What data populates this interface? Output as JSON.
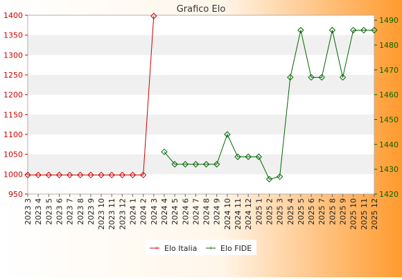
{
  "chart_data": {
    "type": "line",
    "title": "Grafico Elo",
    "categories": [
      "2023 3",
      "2023 4",
      "2023 5",
      "2023 6",
      "2023 7",
      "2023 8",
      "2023 9",
      "2023 10",
      "2023 11",
      "2023 12",
      "2024 1",
      "2024 2",
      "2024 3",
      "2024 4",
      "2024 5",
      "2024 6",
      "2024 7",
      "2024 8",
      "2024 9",
      "2024 10",
      "2024 11",
      "2024 12",
      "2025 1",
      "2025 2",
      "2025 3",
      "2025 4",
      "2025 5",
      "2025 6",
      "2025 7",
      "2025 8",
      "2025 9",
      "2025 10",
      "2025 11",
      "2025 12"
    ],
    "y_left": {
      "range": [
        950,
        1400
      ],
      "ticks": [
        950,
        1000,
        1050,
        1100,
        1150,
        1200,
        1250,
        1300,
        1350,
        1400
      ],
      "color": "#cc0000"
    },
    "y_right": {
      "range": [
        1420,
        1492
      ],
      "ticks": [
        1420,
        1430,
        1440,
        1450,
        1460,
        1470,
        1480,
        1490
      ],
      "color": "#006600"
    },
    "grid": "horizontal bands",
    "legend_position": "bottom-center",
    "series": [
      {
        "name": "Elo Italia",
        "axis": "left",
        "color": "#cc0000",
        "values": [
          998,
          998,
          998,
          998,
          998,
          998,
          998,
          998,
          998,
          998,
          998,
          998,
          1398,
          null,
          null,
          null,
          null,
          null,
          null,
          null,
          null,
          null,
          null,
          null,
          null,
          null,
          null,
          null,
          null,
          null,
          null,
          null,
          null,
          null
        ]
      },
      {
        "name": "Elo FIDE",
        "axis": "right",
        "color": "#006600",
        "values": [
          null,
          null,
          null,
          null,
          null,
          null,
          null,
          null,
          null,
          null,
          null,
          null,
          null,
          1437,
          1432,
          1432,
          1432,
          1432,
          1432,
          1444,
          1435,
          1435,
          1435,
          1426,
          1427,
          1467,
          1486,
          1467,
          1467,
          1486,
          1467,
          1486,
          1486,
          1486
        ]
      }
    ]
  }
}
